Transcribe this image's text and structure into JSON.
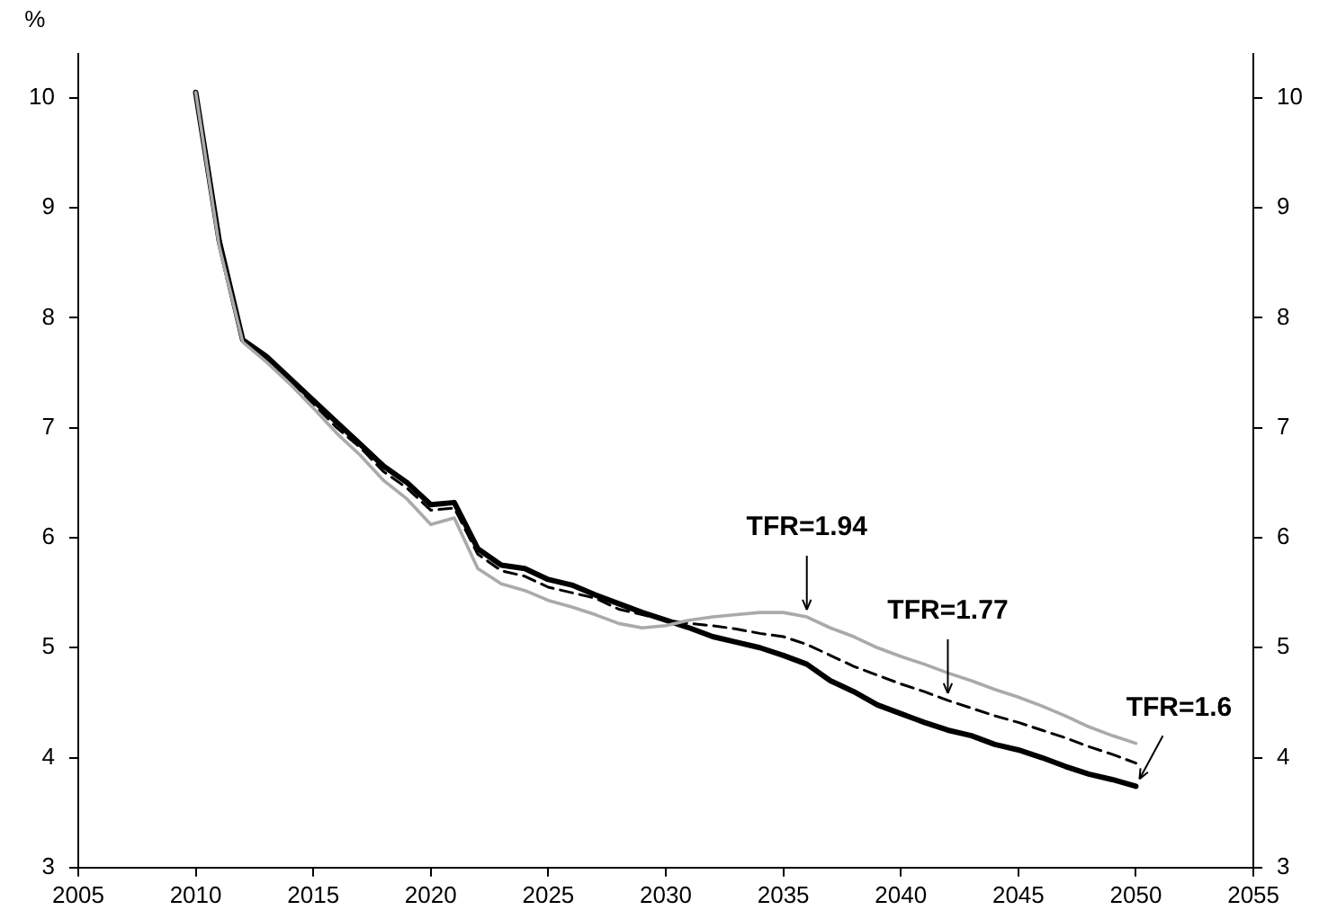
{
  "chart_data": {
    "type": "line",
    "ylabel": "%",
    "x": [
      2010,
      2011,
      2012,
      2013,
      2014,
      2015,
      2016,
      2017,
      2018,
      2019,
      2020,
      2021,
      2022,
      2023,
      2024,
      2025,
      2026,
      2027,
      2028,
      2029,
      2030,
      2031,
      2032,
      2033,
      2034,
      2035,
      2036,
      2037,
      2038,
      2039,
      2040,
      2041,
      2042,
      2043,
      2044,
      2045,
      2046,
      2047,
      2048,
      2049,
      2050
    ],
    "series": [
      {
        "color": "#aaaaaa",
        "line_style": "solid",
        "values": [
          10.05,
          8.65,
          7.78,
          7.6,
          7.4,
          7.18,
          6.95,
          6.75,
          6.52,
          6.35,
          6.12,
          6.18,
          5.72,
          5.58,
          5.52,
          5.43,
          5.37,
          5.3,
          5.22,
          5.18,
          5.2,
          5.25,
          5.28,
          5.3,
          5.32,
          5.32,
          5.28,
          5.18,
          5.1,
          5.0,
          4.92,
          4.85,
          4.77,
          4.7,
          4.62,
          4.55,
          4.47,
          4.38,
          4.28,
          4.2,
          4.13
        ]
      },
      {
        "color": "#000000",
        "line_style": "dashed",
        "values": [
          10.05,
          8.68,
          7.8,
          7.63,
          7.43,
          7.22,
          7.0,
          6.82,
          6.6,
          6.45,
          6.25,
          6.27,
          5.85,
          5.7,
          5.65,
          5.55,
          5.5,
          5.45,
          5.35,
          5.3,
          5.25,
          5.22,
          5.2,
          5.17,
          5.13,
          5.1,
          5.03,
          4.93,
          4.83,
          4.75,
          4.67,
          4.6,
          4.52,
          4.45,
          4.38,
          4.32,
          4.25,
          4.18,
          4.1,
          4.03,
          3.95
        ]
      },
      {
        "color": "#000000",
        "line_style": "solid",
        "values": [
          10.05,
          8.7,
          7.8,
          7.65,
          7.45,
          7.25,
          7.05,
          6.85,
          6.65,
          6.5,
          6.3,
          6.32,
          5.9,
          5.75,
          5.72,
          5.62,
          5.57,
          5.48,
          5.4,
          5.32,
          5.25,
          5.18,
          5.1,
          5.05,
          5.0,
          4.93,
          4.85,
          4.7,
          4.6,
          4.48,
          4.4,
          4.32,
          4.25,
          4.2,
          4.12,
          4.07,
          4.0,
          3.92,
          3.85,
          3.8,
          3.74
        ]
      }
    ],
    "xlim": [
      2005,
      2055
    ],
    "xticks": [
      2005,
      2010,
      2015,
      2020,
      2025,
      2030,
      2035,
      2040,
      2045,
      2050,
      2055
    ],
    "ylim": [
      3,
      10.4
    ],
    "yticks": [
      3,
      4,
      5,
      6,
      7,
      8,
      9,
      10
    ],
    "y2lim": [
      3,
      10.4
    ],
    "y2ticks": [
      3,
      4,
      5,
      6,
      7,
      8,
      9,
      10
    ],
    "annotations": [
      {
        "text": "TFR=1.94",
        "x": 2036,
        "y": 5.28
      },
      {
        "text": "TFR=1.77",
        "x": 2042,
        "y": 4.52
      },
      {
        "text": "TFR=1.6",
        "x": 2050,
        "y": 3.74
      }
    ],
    "grid": false,
    "legend": false,
    "marker": "none"
  }
}
